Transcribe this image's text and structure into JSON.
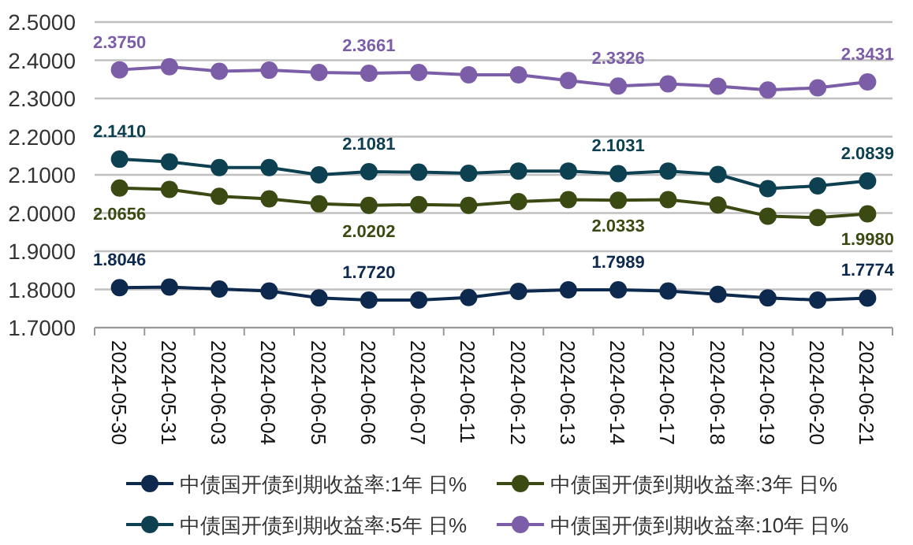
{
  "chart_data": {
    "type": "line",
    "categories": [
      "2024-05-30",
      "2024-05-31",
      "2024-06-03",
      "2024-06-04",
      "2024-06-05",
      "2024-06-06",
      "2024-06-07",
      "2024-06-11",
      "2024-06-12",
      "2024-06-13",
      "2024-06-14",
      "2024-06-17",
      "2024-06-18",
      "2024-06-19",
      "2024-06-20",
      "2024-06-21"
    ],
    "series": [
      {
        "name": "中债国开债到期收益率:1年 日%",
        "color": "#0d2a4e",
        "values": [
          1.8046,
          1.806,
          1.801,
          1.796,
          1.778,
          1.772,
          1.772,
          1.779,
          1.795,
          1.799,
          1.7989,
          1.796,
          1.787,
          1.778,
          1.772,
          1.7774
        ],
        "value_labels": [
          "1.8046",
          null,
          null,
          null,
          null,
          "1.7720",
          null,
          null,
          null,
          null,
          "1.7989",
          null,
          null,
          null,
          null,
          "1.7774"
        ]
      },
      {
        "name": "中债国开债到期收益率:3年 日%",
        "color": "#3b4a12",
        "values": [
          2.0656,
          2.062,
          2.044,
          2.037,
          2.024,
          2.0202,
          2.022,
          2.02,
          2.03,
          2.035,
          2.0333,
          2.035,
          2.021,
          1.992,
          1.988,
          1.998
        ],
        "value_labels": [
          "2.0656",
          null,
          null,
          null,
          null,
          "2.0202",
          null,
          null,
          null,
          null,
          "2.0333",
          null,
          null,
          null,
          null,
          "1.9980"
        ]
      },
      {
        "name": "中债国开债到期收益率:5年 日%",
        "color": "#0d4050",
        "values": [
          2.141,
          2.134,
          2.119,
          2.119,
          2.1,
          2.1081,
          2.107,
          2.104,
          2.11,
          2.11,
          2.1031,
          2.11,
          2.101,
          2.064,
          2.071,
          2.0839
        ],
        "value_labels": [
          "2.1410",
          null,
          null,
          null,
          null,
          "2.1081",
          null,
          null,
          null,
          null,
          "2.1031",
          null,
          null,
          null,
          null,
          "2.0839"
        ]
      },
      {
        "name": "中债国开债到期收益率:10年 日%",
        "color": "#7b5ea7",
        "values": [
          2.375,
          2.383,
          2.371,
          2.374,
          2.368,
          2.3661,
          2.368,
          2.362,
          2.362,
          2.347,
          2.3326,
          2.338,
          2.332,
          2.322,
          2.328,
          2.3431
        ],
        "value_labels": [
          "2.3750",
          null,
          null,
          null,
          null,
          "2.3661",
          null,
          null,
          null,
          null,
          "2.3326",
          null,
          null,
          null,
          null,
          "2.3431"
        ]
      }
    ],
    "ylim": [
      1.7,
      2.5
    ],
    "yticks": [
      {
        "value": 1.7,
        "label": "1.7000"
      },
      {
        "value": 1.8,
        "label": "1.8000"
      },
      {
        "value": 1.9,
        "label": "1.9000"
      },
      {
        "value": 2.0,
        "label": "2.0000"
      },
      {
        "value": 2.1,
        "label": "2.1000"
      },
      {
        "value": 2.2,
        "label": "2.2000"
      },
      {
        "value": 2.3,
        "label": "2.3000"
      },
      {
        "value": 2.4,
        "label": "2.4000"
      },
      {
        "value": 2.5,
        "label": "2.5000"
      }
    ],
    "grid": "y",
    "legend": "bottom",
    "marker": "circle",
    "line_style": "solid"
  }
}
